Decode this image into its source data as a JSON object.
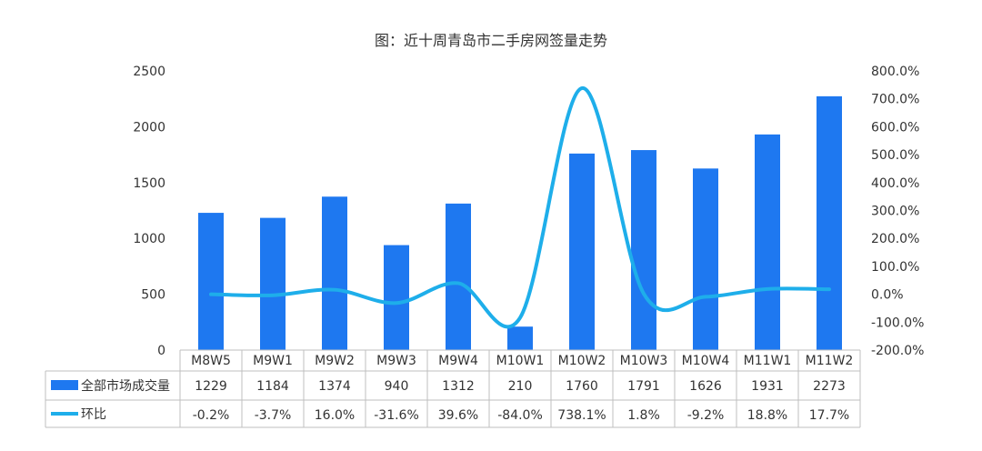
{
  "chart_data": {
    "type": "bar",
    "title": "图：近十周青岛市二手房网签量走势",
    "categories": [
      "M8W5",
      "M9W1",
      "M9W2",
      "M9W3",
      "M9W4",
      "M10W1",
      "M10W2",
      "M10W3",
      "M10W4",
      "M11W1",
      "M11W2"
    ],
    "series": [
      {
        "name": "全部市场成交量",
        "type": "bar",
        "axis": "left",
        "values": [
          1229,
          1184,
          1374,
          940,
          1312,
          210,
          1760,
          1791,
          1626,
          1931,
          2273
        ]
      },
      {
        "name": "环比",
        "type": "line",
        "axis": "right",
        "values": [
          -0.2,
          -3.7,
          16.0,
          -31.6,
          39.6,
          -84.0,
          738.1,
          1.8,
          -9.2,
          18.8,
          17.7
        ],
        "labels": [
          "-0.2%",
          "-3.7%",
          "16.0%",
          "-31.6%",
          "39.6%",
          "-84.0%",
          "738.1%",
          "1.8%",
          "-9.2%",
          "18.8%",
          "17.7%"
        ]
      }
    ],
    "ylim_left": [
      0,
      2500
    ],
    "yticks_left": [
      "2500",
      "2000",
      "1500",
      "1000",
      "500",
      "0"
    ],
    "ylim_right": [
      -200,
      800
    ],
    "yticks_right": [
      "800.0%",
      "700.0%",
      "600.0%",
      "500.0%",
      "400.0%",
      "300.0%",
      "200.0%",
      "100.0%",
      "0.0%",
      "-100.0%",
      "-200.0%"
    ],
    "grid": false,
    "legend": "data-table",
    "colors": {
      "bar": "#1e78f0",
      "line": "#1eaeea",
      "text": "#333333",
      "table": "#bfbfbf"
    }
  }
}
